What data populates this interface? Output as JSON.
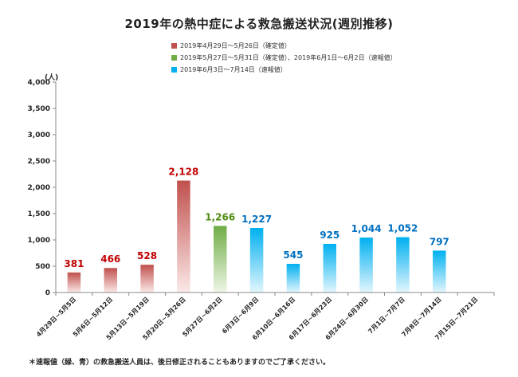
{
  "chart_data": {
    "type": "bar",
    "title": "2019年の熱中症による救急搬送状況(週別推移)",
    "ylabel": "(人)",
    "ylim": [
      0,
      4000
    ],
    "yticks": [
      "0",
      "500",
      "1,000",
      "1,500",
      "2,000",
      "2,500",
      "3,000",
      "3,500",
      "4,000"
    ],
    "categories": [
      "4月29日~5月5日",
      "5月6日~5月12日",
      "5月13日~5月19日",
      "5月20日~5月26日",
      "5月27日~6月2日",
      "6月3日~6月9日",
      "6月10日~6月16日",
      "6月17日~6月23日",
      "6月24日~6月30日",
      "7月1日~7月7日",
      "7月8日~7月14日",
      "7月15日~7月21日"
    ],
    "values": [
      381,
      466,
      528,
      2128,
      1266,
      1227,
      545,
      925,
      1044,
      1052,
      797,
      null
    ],
    "value_labels": [
      "381",
      "466",
      "528",
      "2,128",
      "1,266",
      "1,227",
      "545",
      "925",
      "1,044",
      "1,052",
      "797",
      ""
    ],
    "groups": [
      "confirmed",
      "confirmed",
      "confirmed",
      "confirmed",
      "mixed",
      "preliminary",
      "preliminary",
      "preliminary",
      "preliminary",
      "preliminary",
      "preliminary",
      "preliminary"
    ],
    "legend": [
      {
        "key": "confirmed",
        "label": "2019年4月29日～5月26日（確定値）",
        "color": "#c0504d"
      },
      {
        "key": "mixed",
        "label": "2019年5月27日～5月31日（確定値）、2019年6月1日～6月2日（速報値）",
        "color": "#70ad47"
      },
      {
        "key": "preliminary",
        "label": "2019年6月3日～7月14日（速報値）",
        "color": "#00b0f0"
      }
    ],
    "label_colors": {
      "confirmed": "#c00000",
      "mixed": "#4f8a10",
      "preliminary": "#0070c0"
    },
    "legend_position": "top-center",
    "grid": false
  },
  "footnote": "＊速報値（緑、青）の救急搬送人員は、後日修正されることもありますのでご了承ください。"
}
